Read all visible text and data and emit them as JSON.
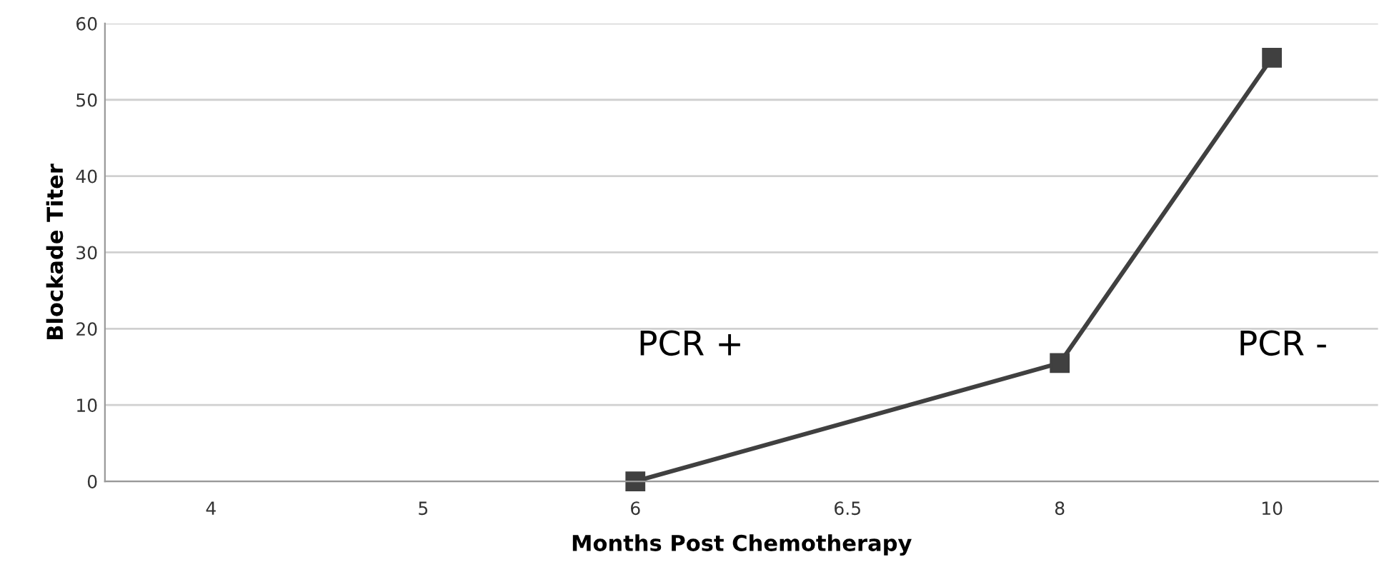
{
  "chart_data": {
    "type": "line",
    "xlabel": "Months Post Chemotherapy",
    "ylabel": "Blockade Titer",
    "categories": [
      "4",
      "5",
      "6",
      "6.5",
      "8",
      "10"
    ],
    "series": [
      {
        "color": "#404040",
        "values": [
          null,
          null,
          0,
          null,
          15.5,
          55.5
        ]
      }
    ],
    "ylim": [
      0,
      60
    ],
    "yticks": [
      0,
      10,
      20,
      30,
      40,
      50,
      60
    ],
    "grid": "y",
    "marker": "square",
    "line_style": "solid",
    "legend": false,
    "annotations": [
      "PCR +",
      "PCR -"
    ]
  }
}
